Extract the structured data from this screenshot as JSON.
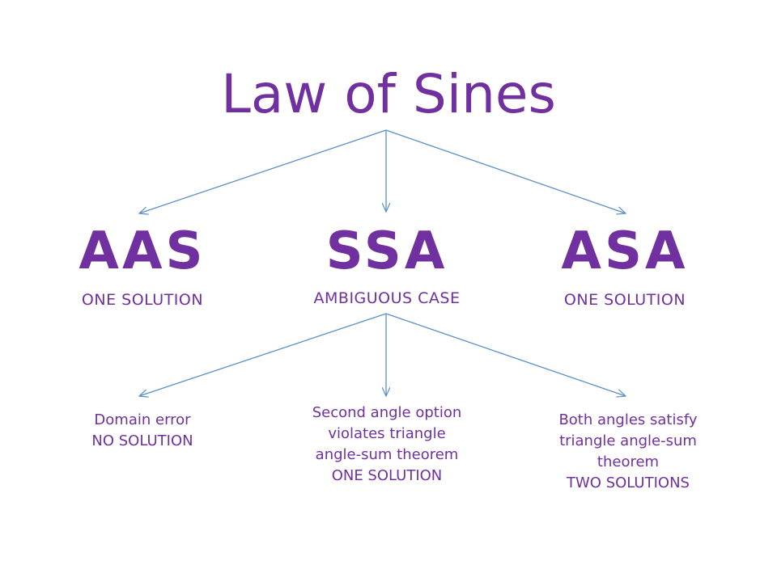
{
  "title": "Law of Sines",
  "cases": [
    {
      "name": "AAS",
      "desc": "ONE SOLUTION"
    },
    {
      "name": "SSA",
      "desc": "AMBIGUOUS CASE"
    },
    {
      "name": "ASA",
      "desc": "ONE SOLUTION"
    }
  ],
  "ssa_outcomes": [
    {
      "lines": [
        "Domain error",
        "NO SOLUTION"
      ]
    },
    {
      "lines": [
        "Second angle option",
        "violates triangle",
        "angle-sum theorem",
        "ONE SOLUTION"
      ]
    },
    {
      "lines": [
        "Both angles satisfy",
        "triangle angle-sum",
        "theorem",
        "TWO SOLUTIONS"
      ]
    }
  ],
  "colors": {
    "text": "#7030a0",
    "arrow": "#5b8fc7"
  }
}
